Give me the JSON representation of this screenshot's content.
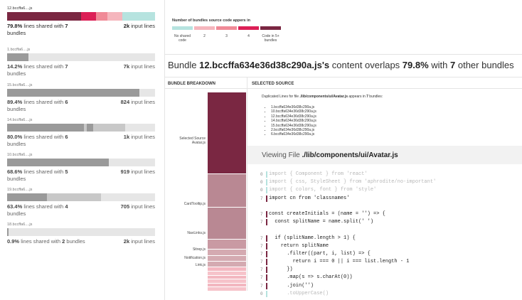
{
  "colors": {
    "c1": "#b6e3df",
    "c2": "#f5b6bd",
    "c3": "#f08a97",
    "c4": "#dc1f56",
    "c5": "#7a2742",
    "grey_dark": "#9a9a9a",
    "grey_light": "#c8c8c8",
    "track": "#e6e6e6"
  },
  "bundles": [
    {
      "name": "12.bccffa6....js",
      "percent": "79.8%",
      "mid": " lines shared with ",
      "shared": "7",
      "tail": " bundles",
      "lines_num": "2k",
      "lines_label": " input lines",
      "segments": [
        {
          "w": 0.5,
          "c": "c5"
        },
        {
          "w": 0.1,
          "c": "c4"
        },
        {
          "w": 0.08,
          "c": "c3"
        },
        {
          "w": 0.1,
          "c": "c2"
        },
        {
          "w": 0.22,
          "c": "c1"
        }
      ]
    },
    {
      "name": "1.bccffa6....js",
      "percent": "14.2%",
      "mid": " lines shared with ",
      "shared": "7",
      "tail": " bundles",
      "lines_num": "7k",
      "lines_label": " input lines",
      "segments": [
        {
          "w": 0.142,
          "c": "grey_dark"
        }
      ]
    },
    {
      "name": "15.bccffa6....js",
      "percent": "89.4%",
      "mid": " lines shared with ",
      "shared": "6",
      "tail": " bundles",
      "lines_num": "824",
      "lines_label": " input lines",
      "segments": [
        {
          "w": 0.894,
          "c": "grey_dark"
        }
      ]
    },
    {
      "name": "14.bccffa6....js",
      "percent": "80.0%",
      "mid": " lines shared with ",
      "shared": "6",
      "tail": " bundles",
      "lines_num": "1k",
      "lines_label": " input lines",
      "segments": [
        {
          "w": 0.52,
          "c": "grey_dark"
        },
        {
          "w": 0.02,
          "c": "grey_light"
        },
        {
          "w": 0.04,
          "c": "grey_dark"
        },
        {
          "w": 0.22,
          "c": "grey_light"
        }
      ]
    },
    {
      "name": "10.bccffa6....js",
      "percent": "68.6%",
      "mid": " lines shared with ",
      "shared": "5",
      "tail": " bundles",
      "lines_num": "919",
      "lines_label": " input lines",
      "segments": [
        {
          "w": 0.686,
          "c": "grey_dark"
        }
      ]
    },
    {
      "name": "19.bccffa6....js",
      "percent": "63.4%",
      "mid": " lines shared with ",
      "shared": "4",
      "tail": " bundles",
      "lines_num": "705",
      "lines_label": " input lines",
      "segments": [
        {
          "w": 0.27,
          "c": "grey_dark"
        },
        {
          "w": 0.2,
          "c": "grey_light"
        },
        {
          "w": 0.164,
          "c": "grey_light"
        }
      ]
    },
    {
      "name": "18.bccffa6....js",
      "percent": "0.9%",
      "mid": " lines shared with ",
      "shared": "2",
      "tail": " bundles",
      "lines_num": "2k",
      "lines_label": " input lines",
      "segments": [
        {
          "w": 0.009,
          "c": "grey_dark"
        }
      ]
    }
  ],
  "legend": {
    "title": "Number of bundles source code appers in",
    "items": [
      {
        "label": "No shared code",
        "c": "c1"
      },
      {
        "label": "2",
        "c": "c2"
      },
      {
        "label": "3",
        "c": "c3"
      },
      {
        "label": "4",
        "c": "c4"
      },
      {
        "label": "Code in 5+ bundles",
        "c": "c5"
      }
    ]
  },
  "headline": {
    "pre": "Bundle ",
    "bundle": "12.bccffa634e36d38c290a.js's",
    "mid": " content overlaps ",
    "percent": "79.8%",
    "mid2": " with ",
    "count": "7",
    "post": " other bundles"
  },
  "columns": {
    "breakdown": "BUNDLE BREAKDOWN",
    "source": "SELECTED SOURCE"
  },
  "breakdown": {
    "segments": [
      {
        "frac": 0.41,
        "c": "c5"
      },
      {
        "frac": 0.17,
        "c": "#b98893"
      },
      {
        "frac": 0.16,
        "c": "#b98893"
      },
      {
        "frac": 0.05,
        "c": "#c99aa3"
      },
      {
        "frac": 0.03,
        "c": "#d4aab1"
      },
      {
        "frac": 0.03,
        "c": "#d4aab1"
      },
      {
        "frac": 0.03,
        "c": "#d4aab1"
      },
      {
        "frac": 0.02,
        "c": "#f3b7c0"
      },
      {
        "frac": 0.02,
        "c": "#f6c3ca"
      },
      {
        "frac": 0.02,
        "c": "#f3b7c0"
      },
      {
        "frac": 0.02,
        "c": "#f6c3ca"
      },
      {
        "frac": 0.02,
        "c": "#f3b7c0"
      },
      {
        "frac": 0.02,
        "c": "#f6c3ca"
      }
    ],
    "labels": [
      {
        "text": "Selected Source",
        "line2": "Avatar.js"
      },
      {
        "text": "CardTooltip.js",
        "line2": ""
      },
      {
        "text": "NavLinks.js",
        "line2": ""
      },
      {
        "text": "Sitrep.js",
        "line2": ""
      },
      {
        "text": "Notification.js",
        "line2": ""
      },
      {
        "text": "Link.js",
        "line2": ""
      }
    ]
  },
  "duplicated": {
    "pre": "Duplicated Lines for file ",
    "file": "./lib/components/ui/Avatar.js",
    "mid": " appears in ",
    "count": "7",
    "post": " bundles:",
    "bundles": [
      "1.bccffa634e36d38c290a.js",
      "10.bccffa634e36d38c290a.js",
      "12.bccffa634e36d38c290a.js",
      "14.bccffa634e36d38c290a.js",
      "15.bccffa634e36d38c290a.js",
      "2.bccffa634e36d38c290a.js",
      "6.bccffa634e36d38c290a.js"
    ]
  },
  "viewing": {
    "pre": "Viewing File ",
    "file": "./lib/components/ui/Avatar.js"
  },
  "code_lines": [
    {
      "n": "0",
      "text": "import { Component } from 'react'",
      "dim": true,
      "mark": "c1"
    },
    {
      "n": "0",
      "text": "import { css, StyleSheet } from 'aphrodite/no-important'",
      "dim": true,
      "mark": "c1"
    },
    {
      "n": "0",
      "text": "import { colors, font } from 'style'",
      "dim": true,
      "mark": "c1"
    },
    {
      "n": "7",
      "text": "import cn from 'classnames'",
      "dim": false,
      "mark": "c5"
    },
    {
      "n": "",
      "text": "",
      "dim": false,
      "mark": ""
    },
    {
      "n": "7",
      "text": "const createInitials = (name = '') => {",
      "dim": false,
      "mark": "c5"
    },
    {
      "n": "7",
      "text": "  const splitName = name.split(' ')",
      "dim": false,
      "mark": "c5"
    },
    {
      "n": "",
      "text": "",
      "dim": false,
      "mark": ""
    },
    {
      "n": "7",
      "text": "  if (splitName.length > 1) {",
      "dim": false,
      "mark": "c5"
    },
    {
      "n": "7",
      "text": "    return splitName",
      "dim": false,
      "mark": "c5"
    },
    {
      "n": "7",
      "text": "      .filter((part, i, list) => {",
      "dim": false,
      "mark": "c5"
    },
    {
      "n": "7",
      "text": "        return i === 0 || i === list.length - 1",
      "dim": false,
      "mark": "c5"
    },
    {
      "n": "7",
      "text": "      })",
      "dim": false,
      "mark": "c5"
    },
    {
      "n": "7",
      "text": "      .map(s => s.charAt(0))",
      "dim": false,
      "mark": "c5"
    },
    {
      "n": "7",
      "text": "      .join('')",
      "dim": false,
      "mark": "c5"
    },
    {
      "n": "0",
      "text": "      .toUpperCase()",
      "dim": true,
      "mark": "c1"
    }
  ]
}
